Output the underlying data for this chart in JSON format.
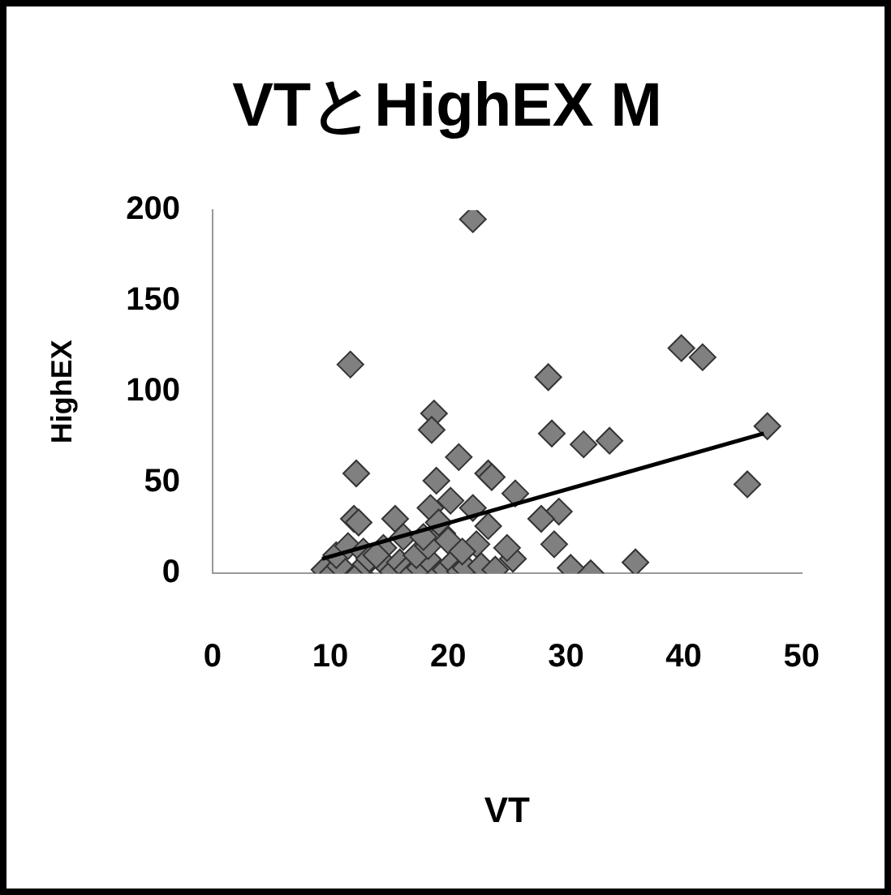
{
  "chart_data": {
    "type": "scatter",
    "title": "VTとHighEX M",
    "xlabel": "VT",
    "ylabel": "HighEX",
    "xlim": [
      0,
      50
    ],
    "xticks": [
      0,
      10,
      20,
      30,
      40,
      50
    ],
    "ylim": [
      0,
      200
    ],
    "yticks": [
      0,
      50,
      100,
      150,
      200
    ],
    "grid": false,
    "marker": "diamond",
    "series": [
      {
        "color": "#808080",
        "x": [
          22.1,
          11.7,
          18.8,
          18.6,
          20.9,
          12.2,
          19.0,
          23.4,
          12.0,
          12.4,
          15.5,
          18.5,
          20.2,
          22.1,
          23.7,
          25.7,
          28.5,
          28.8,
          31.5,
          33.7,
          39.8,
          41.6,
          47.1,
          45.4,
          35.9,
          32.1,
          30.4,
          29.4,
          27.9,
          29.0,
          25.5,
          25.0,
          23.4,
          22.4,
          9.5,
          10.2,
          10.8,
          12.5,
          13.0,
          14.8,
          15.3,
          15.9,
          16.5,
          17.0,
          17.6,
          18.7,
          19.3,
          19.8,
          20.4,
          21.0,
          21.5,
          22.8,
          24.0,
          10.5,
          11.5,
          12.8,
          13.3,
          14.5,
          16.2,
          17.3,
          18.3,
          19.5,
          20.0,
          21.2,
          19.2,
          17.9,
          13.9
        ],
        "values": [
          195,
          115,
          88,
          79,
          64,
          55,
          51,
          55,
          30,
          28,
          30,
          36,
          40,
          36,
          53,
          44,
          108,
          77,
          71,
          73,
          124,
          119,
          81,
          49,
          6,
          0,
          3,
          34,
          30,
          16,
          8,
          14,
          26,
          16,
          2,
          0,
          4,
          0,
          5,
          4,
          1,
          6,
          2,
          0,
          3,
          5,
          0,
          2,
          6,
          1,
          3,
          4,
          2,
          10,
          15,
          12,
          8,
          14,
          20,
          10,
          15,
          22,
          18,
          12,
          28,
          20,
          10
        ]
      },
      {
        "type": "line",
        "color": "#000000",
        "marker": "none",
        "x": [
          9.3,
          46.8
        ],
        "values": [
          8,
          77
        ]
      }
    ]
  }
}
